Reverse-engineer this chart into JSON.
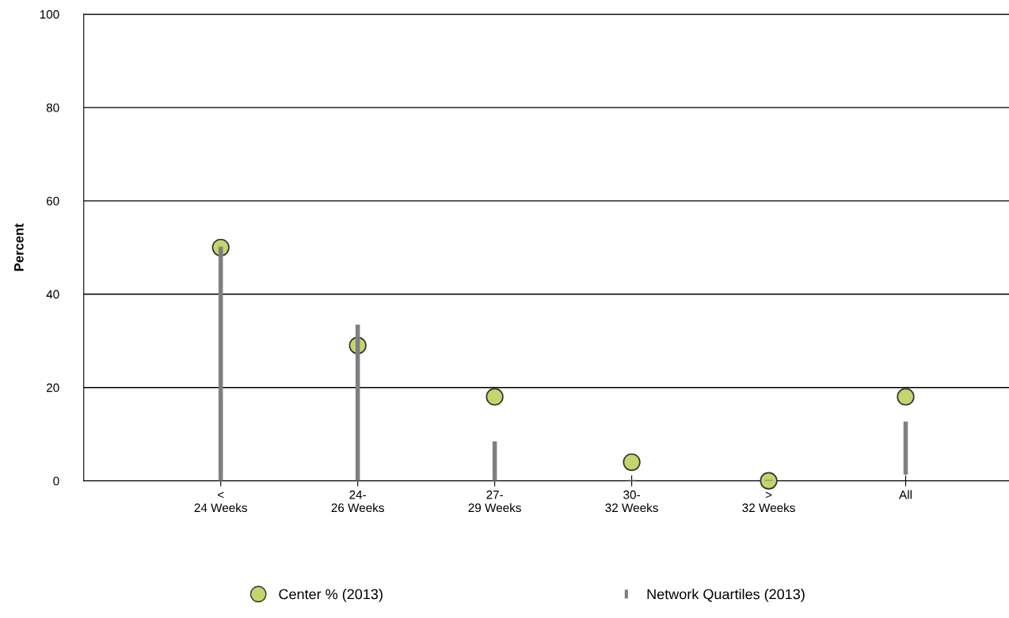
{
  "chart_data": {
    "type": "scatter",
    "ylabel": "Percent",
    "categories": [
      "<\n24 Weeks",
      "24-\n26 Weeks",
      "27-\n29 Weeks",
      "30-\n32 Weeks",
      ">\n32 Weeks",
      "All"
    ],
    "series": [
      {
        "name": "Network Quartiles (2013)",
        "type": "bar",
        "color": "#7f7f7f",
        "base": [
          0,
          0,
          0,
          0,
          0,
          1.5
        ],
        "values": [
          50,
          33.3,
          8.3,
          0,
          0,
          11
        ]
      },
      {
        "name": "Center % (2013)",
        "color": "#c3d66b",
        "values": [
          50,
          29,
          18,
          4,
          0,
          18
        ]
      }
    ],
    "ylim": [
      0,
      100
    ],
    "yticks": [
      0,
      20,
      40,
      60,
      80,
      100
    ],
    "grid": "y",
    "legend": "bottom",
    "marker": "circle"
  }
}
